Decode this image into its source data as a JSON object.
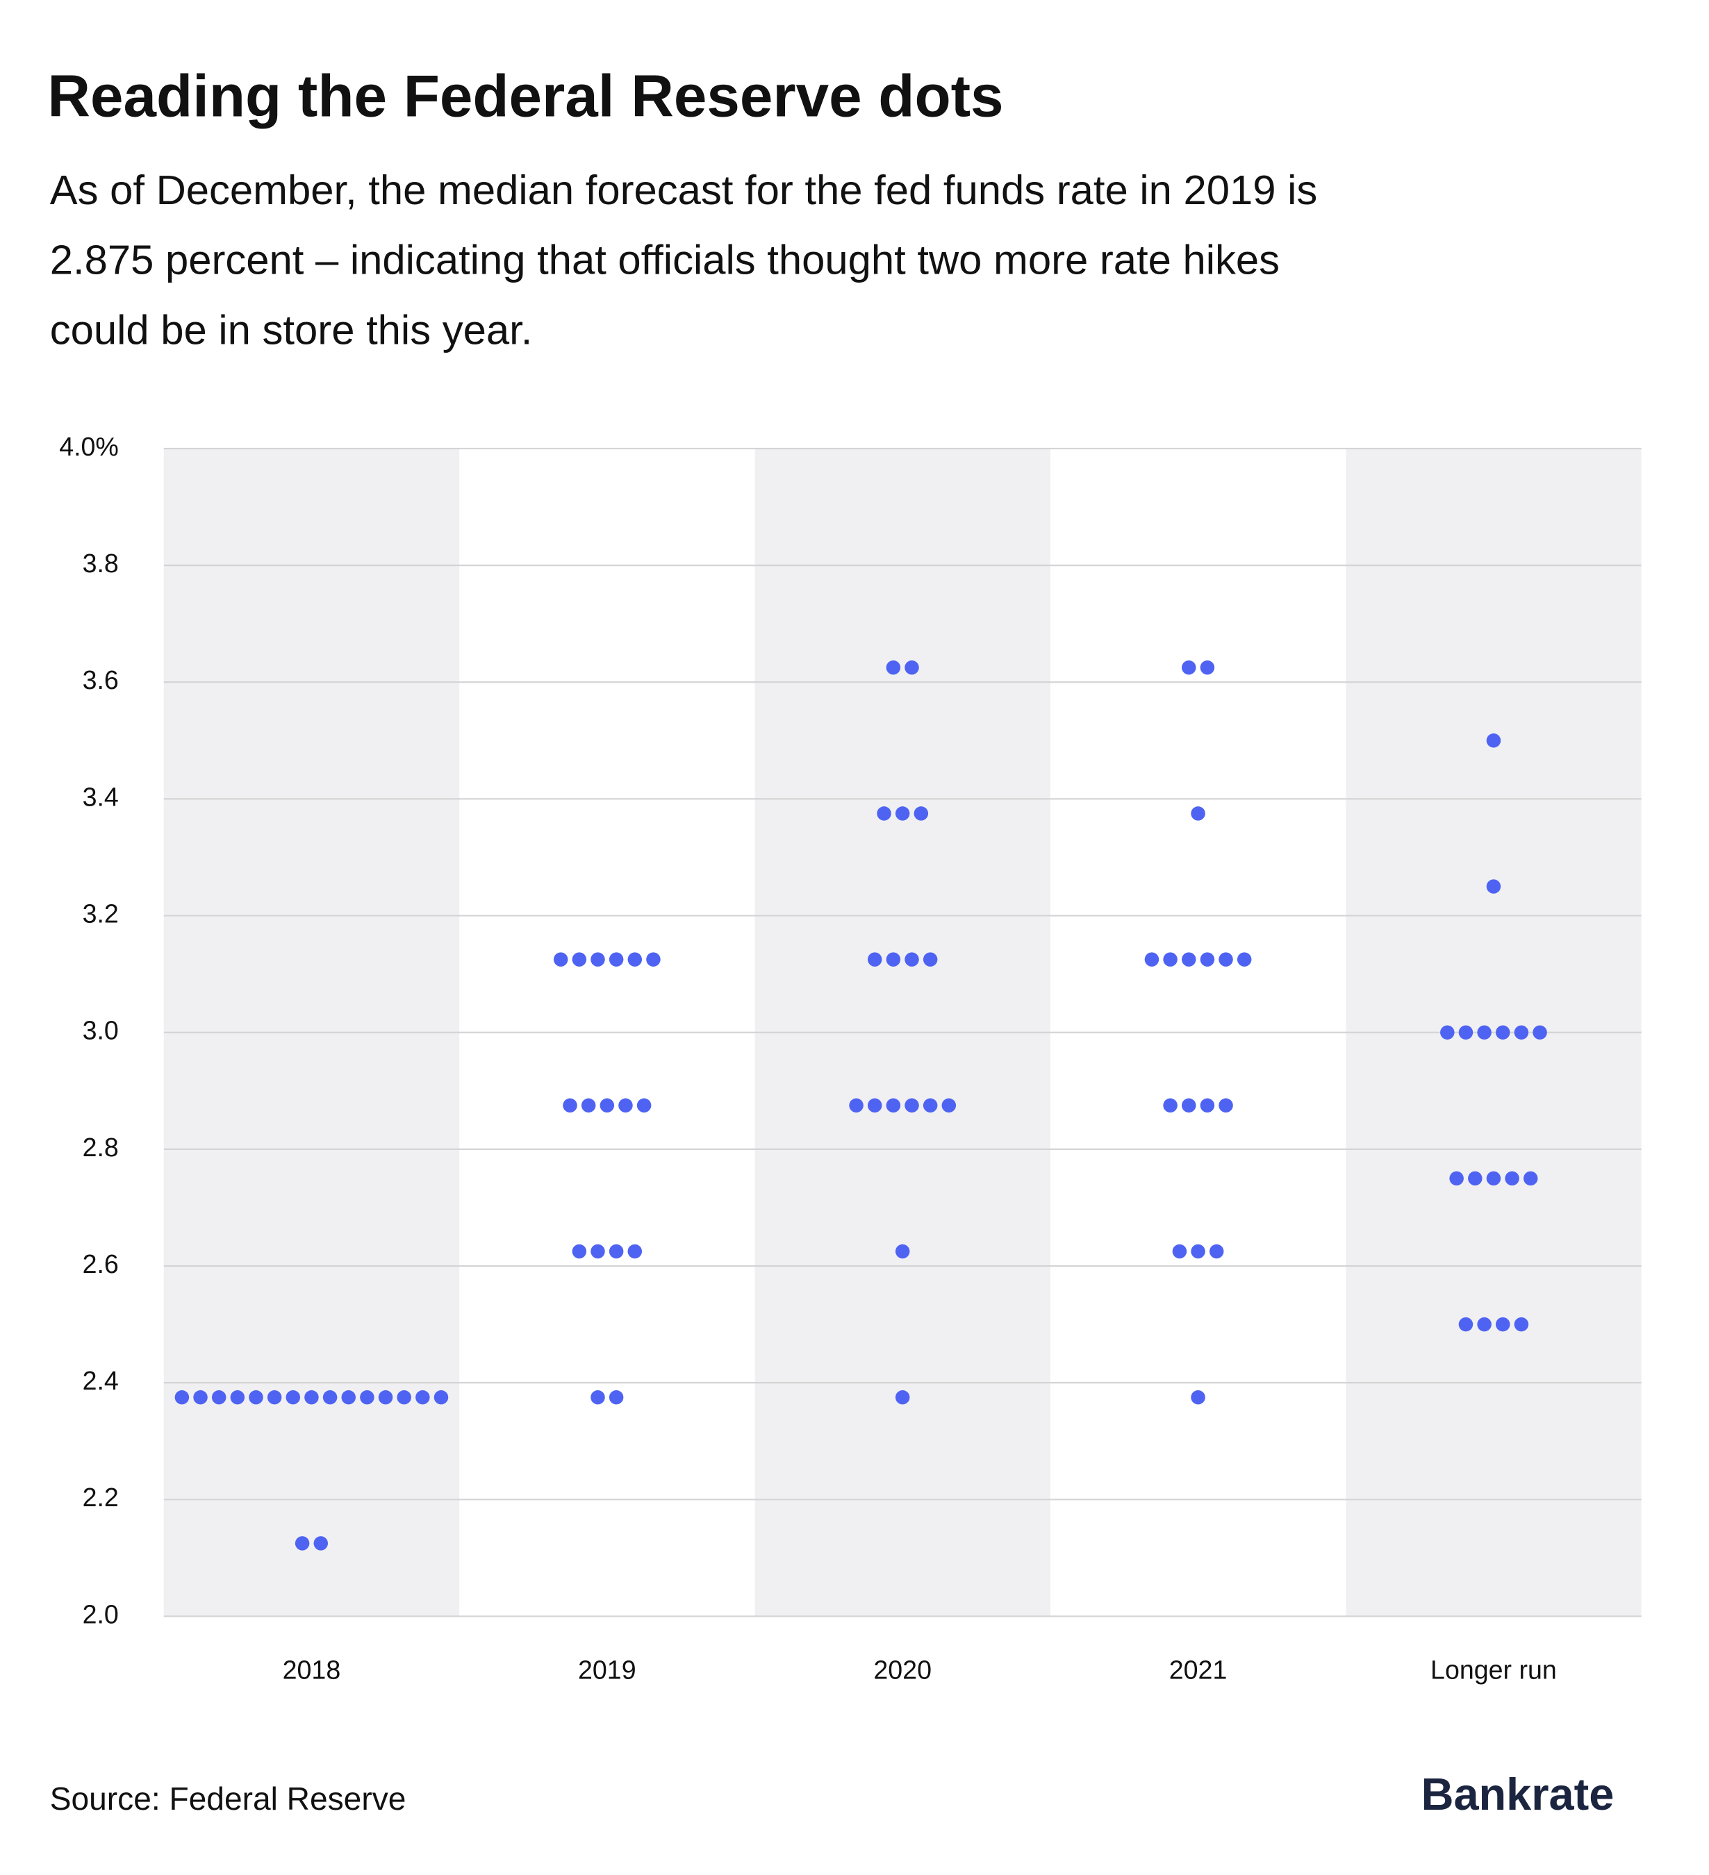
{
  "chart_data": {
    "type": "dot",
    "title": "Reading the Federal Reserve dots",
    "subtitle": [
      "As of December, the median forecast for the fed funds rate in 2019 is",
      "2.875 percent – indicating that officials thought two more rate hikes",
      "could be in store this year."
    ],
    "categories": [
      "2018",
      "2019",
      "2020",
      "2021",
      "Longer run"
    ],
    "values": [
      [
        2.375,
        2.375,
        2.375,
        2.375,
        2.375,
        2.375,
        2.375,
        2.375,
        2.375,
        2.375,
        2.375,
        2.375,
        2.375,
        2.375,
        2.375,
        2.125,
        2.125
      ],
      [
        3.125,
        3.125,
        3.125,
        3.125,
        3.125,
        3.125,
        2.875,
        2.875,
        2.875,
        2.875,
        2.875,
        2.625,
        2.625,
        2.625,
        2.625,
        2.375,
        2.375
      ],
      [
        3.625,
        3.625,
        3.375,
        3.375,
        3.375,
        3.125,
        3.125,
        3.125,
        3.125,
        2.875,
        2.875,
        2.875,
        2.875,
        2.875,
        2.875,
        2.625,
        2.375
      ],
      [
        3.625,
        3.625,
        3.375,
        3.125,
        3.125,
        3.125,
        3.125,
        3.125,
        3.125,
        2.875,
        2.875,
        2.875,
        2.875,
        2.625,
        2.625,
        2.625,
        2.375
      ],
      [
        3.5,
        3.25,
        3.0,
        3.0,
        3.0,
        3.0,
        3.0,
        3.0,
        2.75,
        2.75,
        2.75,
        2.75,
        2.75,
        2.5,
        2.5,
        2.5,
        2.5
      ]
    ],
    "color": "#4f63f2",
    "band_color": "#f0f0f2",
    "ylim": [
      2.0,
      4.0
    ],
    "yticks": [
      {
        "value": 2.0,
        "label": "2.0"
      },
      2.2,
      2.4,
      2.6,
      2.8,
      {
        "value": 3.0,
        "label": "3.0"
      },
      3.2,
      3.4,
      3.6,
      3.8,
      {
        "value": 4.0,
        "label": "4.0%"
      }
    ],
    "grid": true,
    "source": "Source: Federal Reserve",
    "logo": "Bankrate"
  }
}
